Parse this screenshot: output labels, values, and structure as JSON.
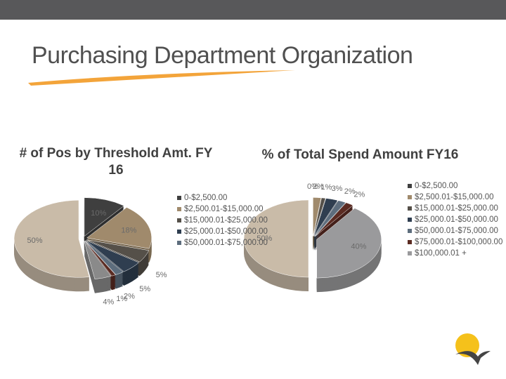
{
  "slide": {
    "title": "Purchasing Department Organization"
  },
  "chart_data": [
    {
      "type": "pie",
      "title": "# of Pos by Threshold Amt. FY 16",
      "categories": [
        "0-$2,500.00",
        "$2,500.01-$15,000.00",
        "$15,000.01-$25,000.00",
        "$25,000.01-$50,000.00",
        "$50,000.01-$75,000.00",
        null,
        null,
        null
      ],
      "values": [
        10,
        18,
        5,
        5,
        2,
        1,
        4,
        50
      ],
      "value_labels": [
        "10%",
        "18%",
        "5%",
        "5%",
        "2%",
        "1%",
        "4%",
        "50%"
      ],
      "colors": [
        "#3f3f3f",
        "#a08a6c",
        "#555049",
        "#2f3e50",
        "#5d6d7d",
        "#5b2b22",
        "#8a8a8a",
        "#c9bba8"
      ],
      "legend": "right"
    },
    {
      "type": "pie",
      "title": "% of Total Spend Amount FY16",
      "categories": [
        "0-$2,500.00",
        "$2,500.01-$15,000.00",
        "$15,000.01-$25,000.00",
        "$25,000.01-$50,000.00",
        "$50,000.01-$75,000.00",
        "$75,000.01-$100,000.00",
        "$100,000.01 +",
        null
      ],
      "values": [
        0,
        2,
        1,
        3,
        2,
        2,
        40,
        50
      ],
      "value_labels": [
        "0%",
        "2%",
        "1%",
        "3%",
        "2%",
        "2%",
        "40%",
        "50%"
      ],
      "colors": [
        "#3f3f3f",
        "#a08a6c",
        "#555049",
        "#2f3e50",
        "#5d6d7d",
        "#5b2b22",
        "#9a9a9c",
        "#c9bba8"
      ],
      "legend": "right"
    }
  ]
}
